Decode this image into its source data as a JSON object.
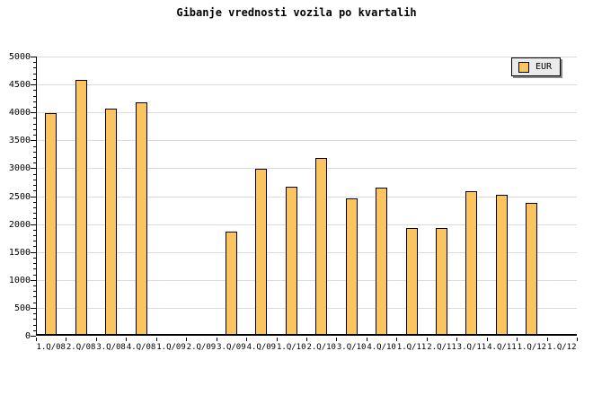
{
  "title": "Gibanje vrednosti vozila po kvartalih",
  "legend": {
    "label": "EUR"
  },
  "colors": {
    "bar_fill": "#FCC45F",
    "bar_border": "#000000",
    "gridline": "#DCDCDC",
    "axis": "#000000",
    "legend_bg": "#EBEBEB",
    "legend_shadow": "#888888",
    "background": "#FFFFFF",
    "text": "#000000"
  },
  "chart_data": {
    "type": "bar",
    "title": "Gibanje vrednosti vozila po kvartalih",
    "categories": [
      "1.Q/08",
      "2.Q/08",
      "3.Q/08",
      "4.Q/08",
      "1.Q/09",
      "2.Q/09",
      "3.Q/09",
      "4.Q/09",
      "1.Q/10",
      "2.Q/10",
      "3.Q/10",
      "4.Q/10",
      "1.Q/11",
      "2.Q/11",
      "3.Q/11",
      "4.Q/11",
      "1.Q/12",
      "1.Q/12"
    ],
    "series": [
      {
        "name": "EUR",
        "values": [
          3950,
          4550,
          4030,
          4150,
          null,
          null,
          1830,
          2960,
          2630,
          3150,
          2420,
          2620,
          1890,
          1890,
          2560,
          2490,
          2340,
          null
        ]
      }
    ],
    "xlabel": "",
    "ylabel": "",
    "ylim": [
      0,
      5000
    ],
    "y_major_step": 500,
    "y_minor_step": 100,
    "y_ticks": [
      "0",
      "500",
      "1000",
      "1500",
      "2000",
      "2500",
      "3000",
      "3500",
      "4000",
      "4500",
      "5000"
    ],
    "grid": true,
    "legend_position": "top-right"
  }
}
